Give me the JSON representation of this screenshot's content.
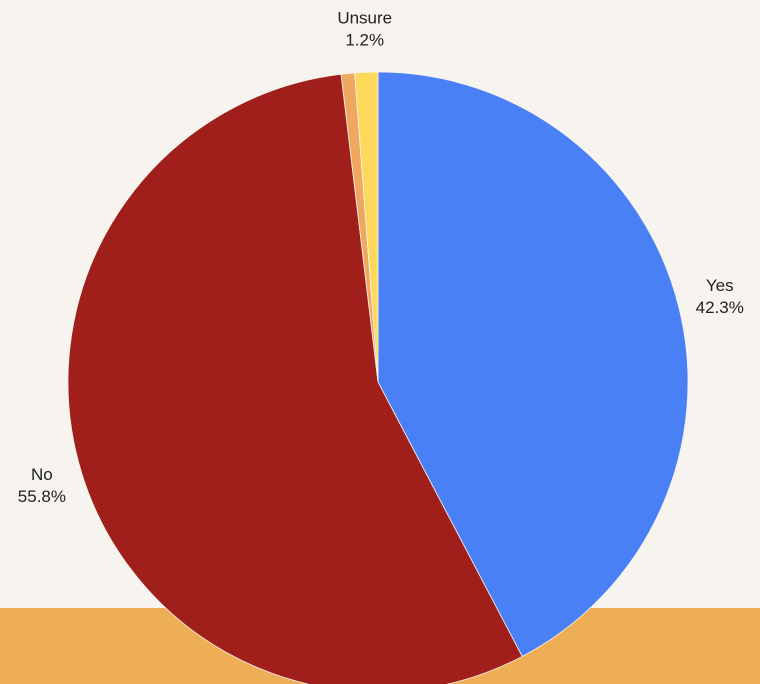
{
  "chart_data": {
    "type": "pie",
    "categories": [
      "Yes",
      "No",
      null,
      "Unsure"
    ],
    "values": [
      42.3,
      55.8,
      0.7,
      1.2
    ],
    "value_labels": [
      "42.3%",
      "55.8%",
      null,
      "1.2%"
    ],
    "colors": [
      "#4a80f5",
      "#a01f1a",
      "#f0a860",
      "#fcd95a"
    ]
  }
}
